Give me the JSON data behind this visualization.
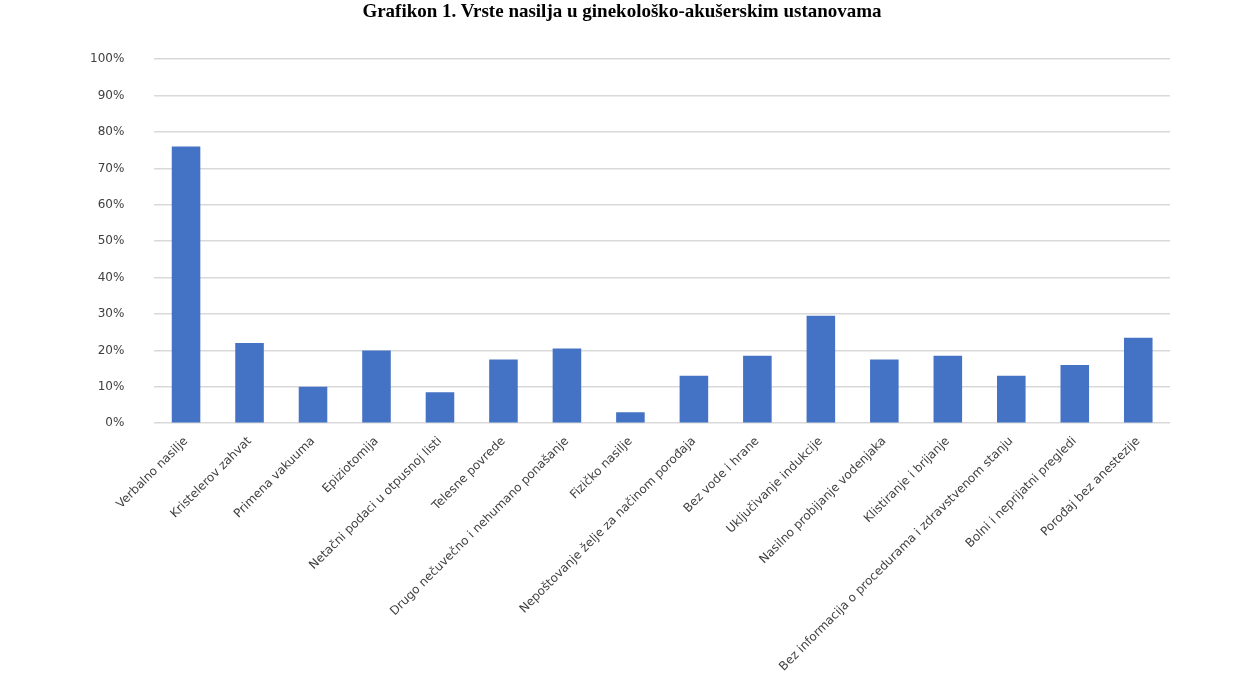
{
  "chart_data": {
    "type": "bar",
    "title": "Grafikon 1. Vrste nasilja u ginekološko-akušerskim ustanovama",
    "categories": [
      "Verbalno nasilje",
      "Kristelerov zahvat",
      "Primena vakuuma",
      "Epiziotomija",
      "Netačni podaci u otpusnoj listi",
      "Telesne povrede",
      "Drugo nečuvečno i nehumano ponašanje",
      "Fizičko nasilje",
      "Nepoštovanje želje za načinom porođaja",
      "Bez vode i hrane",
      "Uključivanje indukcije",
      "Nasilno probijanje vodenjaka",
      "Klistiranje i brijanje",
      "Bez informacija o procedurama i zdravstvenom stanju",
      "Bolni i neprijatni pregledi",
      "Porođaj bez anestezije"
    ],
    "values": [
      76,
      22,
      10,
      20,
      8.5,
      17.5,
      20.5,
      3,
      13,
      18.5,
      29.5,
      17.5,
      18.5,
      13,
      16,
      23.5
    ],
    "color": "#4472c4",
    "ylim": [
      0,
      100
    ],
    "yticks": [
      {
        "value": 0,
        "label": "0%"
      },
      {
        "value": 10,
        "label": "10%"
      },
      {
        "value": 20,
        "label": "20%"
      },
      {
        "value": 30,
        "label": "30%"
      },
      {
        "value": 40,
        "label": "40%"
      },
      {
        "value": 50,
        "label": "50%"
      },
      {
        "value": 60,
        "label": "60%"
      },
      {
        "value": 70,
        "label": "70%"
      },
      {
        "value": 80,
        "label": "80%"
      },
      {
        "value": 90,
        "label": "90%"
      },
      {
        "value": 100,
        "label": "100%"
      }
    ],
    "grid": "y"
  }
}
